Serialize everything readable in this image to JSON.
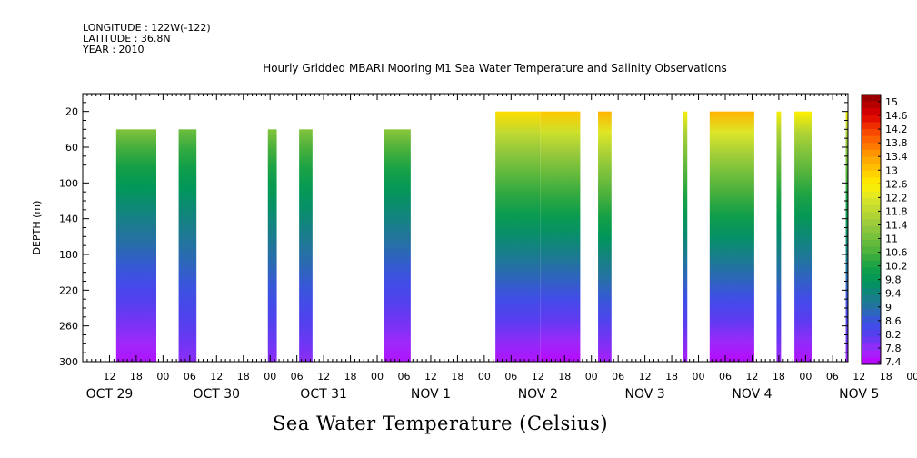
{
  "header": {
    "longitude": "LONGITUDE : 122W(-122)",
    "latitude": "LATITUDE : 36.8N",
    "year": "YEAR : 2010"
  },
  "title": "Hourly Gridded MBARI Mooring M1 Sea Water Temperature and Salinity Observations",
  "bottom_title": "Sea Water Temperature (Celsius)",
  "chart_data": {
    "type": "heatmap",
    "title": "Hourly Gridded MBARI Mooring M1 Sea Water Temperature and Salinity Observations",
    "xlabel": "",
    "ylabel": "DEPTH (m)",
    "x_unit": "hours since OCT 29 00:00",
    "xlim": [
      6,
      177.5
    ],
    "ylim": [
      300,
      0
    ],
    "y_ticks": [
      20,
      60,
      100,
      140,
      180,
      220,
      260,
      300
    ],
    "x_hour_ticks": [
      "12",
      "18",
      "00",
      "06",
      "12",
      "18",
      "00",
      "06",
      "12",
      "18",
      "00",
      "06",
      "12",
      "18",
      "00",
      "06",
      "12",
      "18",
      "00",
      "06",
      "12",
      "18",
      "00",
      "06",
      "12",
      "18",
      "00",
      "06",
      "12",
      "18",
      "00",
      "06"
    ],
    "date_labels": [
      "OCT 29",
      "OCT 30",
      "OCT 31",
      "NOV  1",
      "NOV  2",
      "NOV  3",
      "NOV  4",
      "NOV  5"
    ],
    "colorbar_labels": [
      "15",
      "14.6",
      "14.2",
      "13.8",
      "13.4",
      "13",
      "12.6",
      "12.2",
      "11.8",
      "11.4",
      "11",
      "10.6",
      "10.2",
      "9.8",
      "9.4",
      "9",
      "8.6",
      "8.2",
      "7.8",
      "7.4"
    ],
    "color_scale": {
      "min": 7.4,
      "max": 15.2
    },
    "data_blocks": [
      {
        "x_start": 13.5,
        "x_end": 22.5,
        "depth_top": 40,
        "surface_temp": 11.2,
        "deep_temp": 7.6
      },
      {
        "x_start": 27.5,
        "x_end": 31.5,
        "depth_top": 40,
        "surface_temp": 11.0,
        "deep_temp": 7.9
      },
      {
        "x_start": 47.5,
        "x_end": 49.5,
        "depth_top": 40,
        "surface_temp": 11.2,
        "deep_temp": 7.9
      },
      {
        "x_start": 54.5,
        "x_end": 57.5,
        "depth_top": 40,
        "surface_temp": 11.2,
        "deep_temp": 7.9
      },
      {
        "x_start": 73.5,
        "x_end": 79.5,
        "depth_top": 40,
        "surface_temp": 11.3,
        "deep_temp": 7.6
      },
      {
        "x_start": 98.5,
        "x_end": 108.5,
        "depth_top": 20,
        "surface_temp": 12.8,
        "deep_temp": 7.6
      },
      {
        "x_start": 108.5,
        "x_end": 117.5,
        "depth_top": 20,
        "surface_temp": 13.0,
        "deep_temp": 7.5
      },
      {
        "x_start": 121.5,
        "x_end": 124.5,
        "depth_top": 20,
        "surface_temp": 13.2,
        "deep_temp": 7.7
      },
      {
        "x_start": 140.5,
        "x_end": 141.5,
        "depth_top": 20,
        "surface_temp": 12.5,
        "deep_temp": 7.7
      },
      {
        "x_start": 146.5,
        "x_end": 156.5,
        "depth_top": 20,
        "surface_temp": 13.2,
        "deep_temp": 7.5
      },
      {
        "x_start": 161.5,
        "x_end": 162.5,
        "depth_top": 20,
        "surface_temp": 12.5,
        "deep_temp": 7.8
      },
      {
        "x_start": 165.5,
        "x_end": 169.5,
        "depth_top": 20,
        "surface_temp": 12.6,
        "deep_temp": 7.6
      },
      {
        "x_start": 177.0,
        "x_end": 177.5,
        "depth_top": 20,
        "surface_temp": 12.5,
        "deep_temp": 7.8
      }
    ]
  }
}
